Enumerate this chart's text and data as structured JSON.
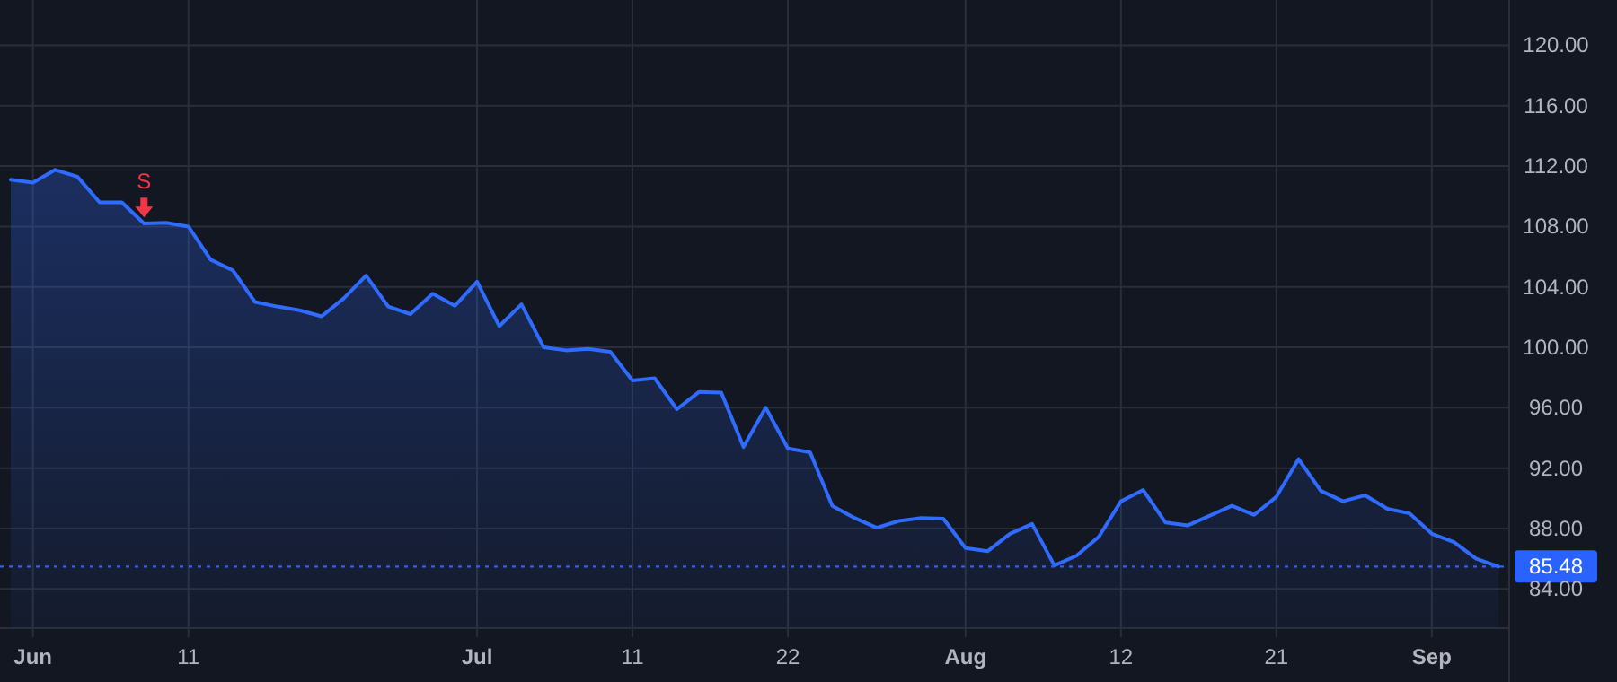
{
  "chart_data": {
    "type": "area",
    "categories": [
      null,
      "Jun",
      null,
      null,
      null,
      null,
      null,
      null,
      "11",
      null,
      null,
      null,
      null,
      null,
      null,
      null,
      null,
      null,
      null,
      null,
      null,
      "Jul",
      null,
      null,
      null,
      null,
      null,
      null,
      "11",
      null,
      null,
      null,
      null,
      null,
      null,
      "22",
      null,
      null,
      null,
      null,
      null,
      null,
      null,
      "Aug",
      null,
      null,
      null,
      null,
      null,
      null,
      "12",
      null,
      null,
      null,
      null,
      null,
      null,
      "21",
      null,
      null,
      null,
      null,
      null,
      null,
      "Sep",
      null,
      null,
      null
    ],
    "series": [
      {
        "color": "#2f6bff",
        "values": [
          111.1,
          110.9,
          111.75,
          111.3,
          109.6,
          109.6,
          108.2,
          108.25,
          108.0,
          105.8,
          105.1,
          103.0,
          102.7,
          102.45,
          102.05,
          103.25,
          104.75,
          102.7,
          102.2,
          103.55,
          102.75,
          104.35,
          101.4,
          102.85,
          100.0,
          99.8,
          99.9,
          99.7,
          97.8,
          97.95,
          95.9,
          97.05,
          97.0,
          93.4,
          96.0,
          93.3,
          93.05,
          89.5,
          88.7,
          88.05,
          88.5,
          88.7,
          88.65,
          86.7,
          86.5,
          87.65,
          88.3,
          85.55,
          86.2,
          87.45,
          89.8,
          90.55,
          88.4,
          88.2,
          88.85,
          89.5,
          88.9,
          90.1,
          92.6,
          90.5,
          89.8,
          90.2,
          89.3,
          89.0,
          87.65,
          87.1,
          86.0,
          85.48
        ]
      },
      {
        "type": "scatter",
        "name": "S",
        "color": "#f23645",
        "values": [
          null,
          null,
          null,
          null,
          null,
          null,
          109.2,
          null,
          null,
          null,
          null,
          null,
          null,
          null,
          null,
          null,
          null,
          null,
          null,
          null,
          null,
          null,
          null,
          null,
          null,
          null,
          null,
          null,
          null,
          null,
          null,
          null,
          null,
          null,
          null,
          null,
          null,
          null,
          null,
          null,
          null,
          null,
          null,
          null,
          null,
          null,
          null,
          null,
          null,
          null,
          null,
          null,
          null,
          null,
          null,
          null,
          null,
          null,
          null,
          null,
          null,
          null,
          null,
          null,
          null,
          null,
          null,
          null
        ]
      }
    ],
    "ylim": [
      81.4,
      123
    ],
    "yticks": [
      {
        "value": 84,
        "label": "84.00"
      },
      {
        "value": 88,
        "label": "88.00"
      },
      {
        "value": 92,
        "label": "92.00"
      },
      {
        "value": 96,
        "label": "96.00"
      },
      {
        "value": 100,
        "label": "100.00"
      },
      {
        "value": 104,
        "label": "104.00"
      },
      {
        "value": 108,
        "label": "108.00"
      },
      {
        "value": 112,
        "label": "112.00"
      },
      {
        "value": 116,
        "label": "116.00"
      },
      {
        "value": 120,
        "label": "120.00"
      }
    ],
    "grid": true,
    "ref_lines": [
      {
        "axis": "y",
        "value": 85.48,
        "label": "85.48",
        "color": "#2962ff",
        "line_style": "dotted"
      }
    ]
  }
}
